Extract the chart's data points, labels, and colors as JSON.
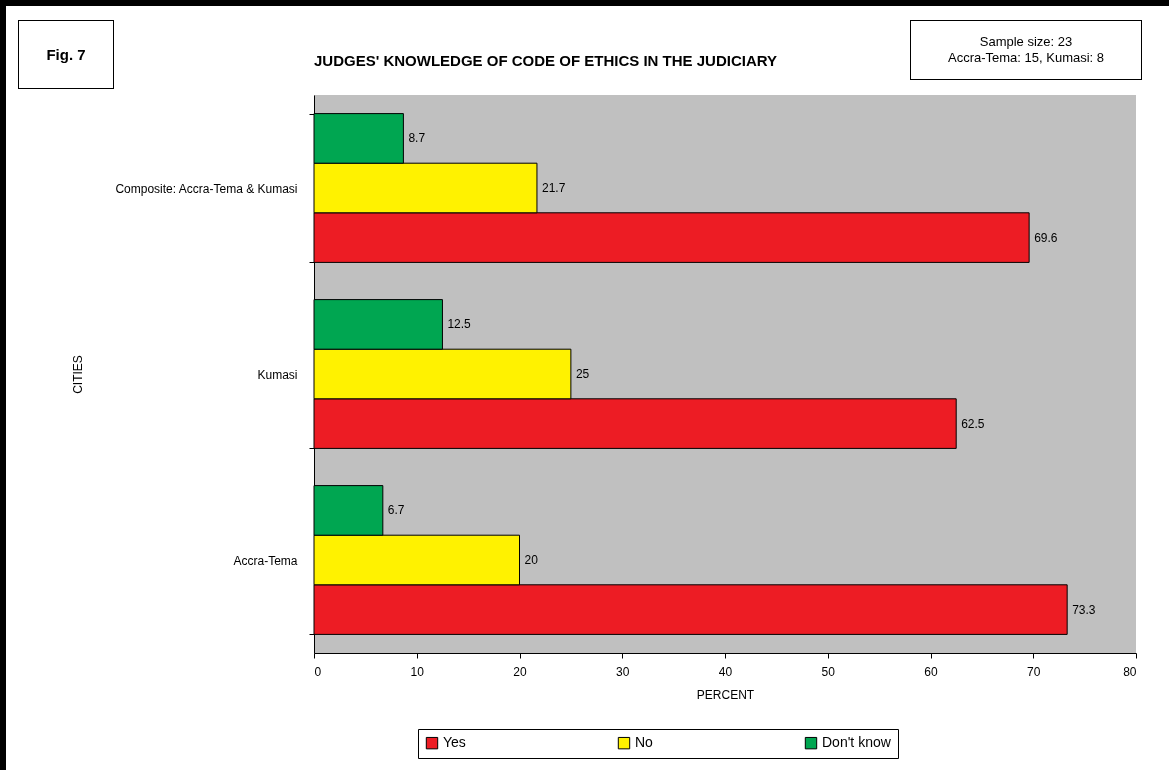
{
  "chart_data": {
    "type": "bar",
    "orientation": "horizontal",
    "title": "JUDGES' KNOWLEDGE OF CODE OF ETHICS IN THE JUDICIARY",
    "xlabel": "PERCENT",
    "ylabel": "CITIES",
    "categories": [
      "Composite: Accra-Tema & Kumasi",
      "Kumasi",
      "Accra-Tema"
    ],
    "series": [
      {
        "name": "Yes",
        "color": "#ed1c24",
        "values": [
          69.6,
          62.5,
          73.3
        ]
      },
      {
        "name": "No",
        "color": "#fff200",
        "values": [
          21.7,
          25,
          20
        ]
      },
      {
        "name": "Don't know",
        "color": "#00a651",
        "values": [
          8.7,
          12.5,
          6.7
        ]
      }
    ],
    "xlim": [
      0,
      80
    ],
    "xticks": [
      0,
      10,
      20,
      30,
      40,
      50,
      60,
      70,
      80
    ],
    "grid": false,
    "legend": "bottom",
    "data_labels": true,
    "annotations": [
      "Fig. 7",
      "Sample size: 23",
      "Accra-Tema: 15,  Kumasi: 8"
    ]
  }
}
